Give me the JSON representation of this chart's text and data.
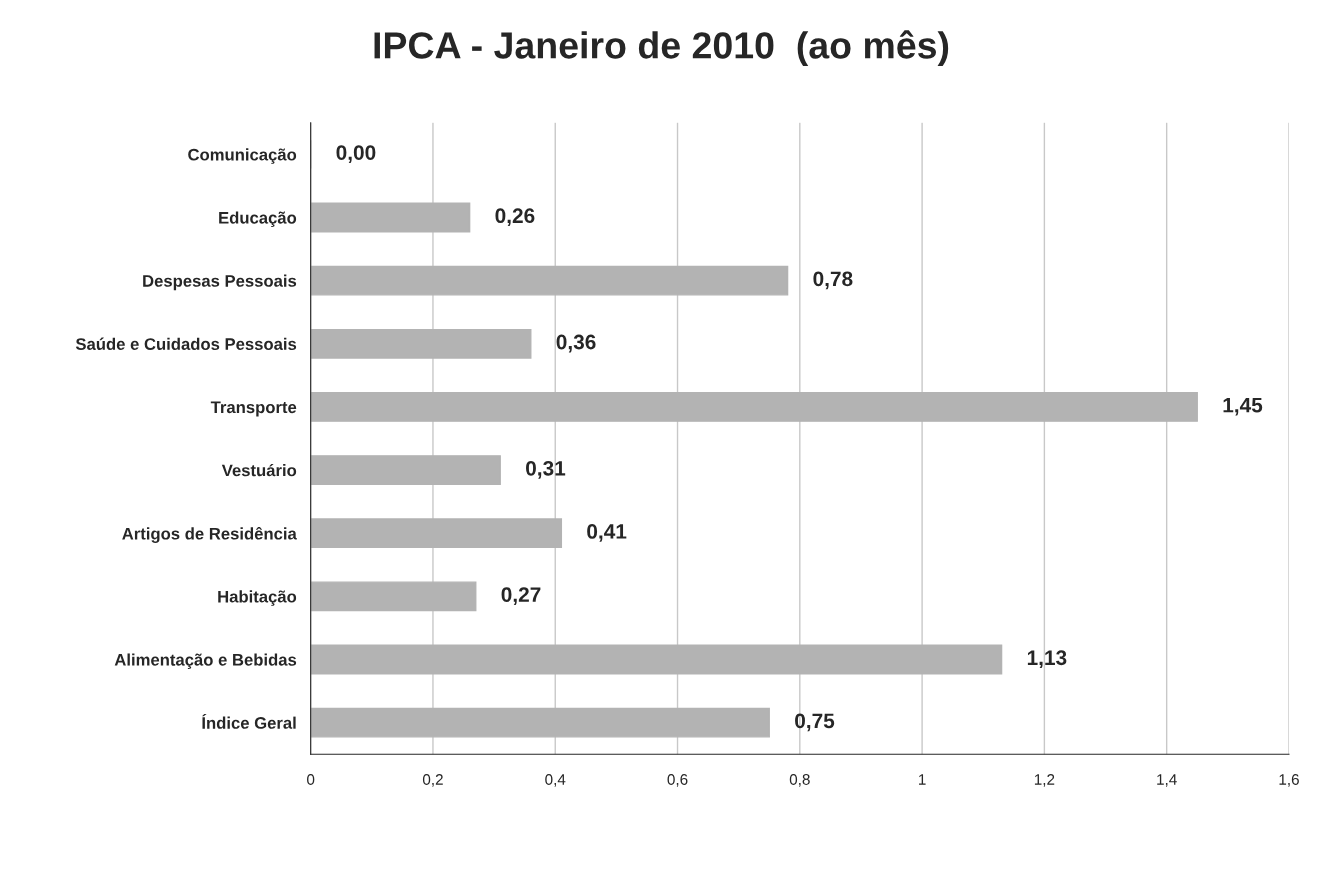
{
  "chart_data": {
    "type": "bar",
    "orientation": "horizontal",
    "title": "IPCA - Janeiro de 2010  (ao mês)",
    "categories": [
      "Comunicação",
      "Educação",
      "Despesas Pessoais",
      "Saúde e Cuidados Pessoais",
      "Transporte",
      "Vestuário",
      "Artigos de Residência",
      "Habitação",
      "Alimentação e Bebidas",
      "Índice Geral"
    ],
    "values": [
      0.0,
      0.26,
      0.78,
      0.36,
      1.45,
      0.31,
      0.41,
      0.27,
      1.13,
      0.75
    ],
    "value_labels": [
      "0,00",
      "0,26",
      "0,78",
      "0,36",
      "1,45",
      "0,31",
      "0,41",
      "0,27",
      "1,13",
      "0,75"
    ],
    "color": "#b3b3b3",
    "xlim": [
      0,
      1.6
    ],
    "xticks": [
      0,
      {
        "value": 0.2,
        "label": "0,2"
      },
      {
        "value": 0.4,
        "label": "0,4"
      },
      {
        "value": 0.6,
        "label": "0,6"
      },
      {
        "value": 0.8,
        "label": "0,8"
      },
      1,
      {
        "value": 1.2,
        "label": "1,2"
      },
      {
        "value": 1.4,
        "label": "1,4"
      },
      {
        "value": 1.6,
        "label": "1,6"
      }
    ],
    "grid": "x"
  }
}
